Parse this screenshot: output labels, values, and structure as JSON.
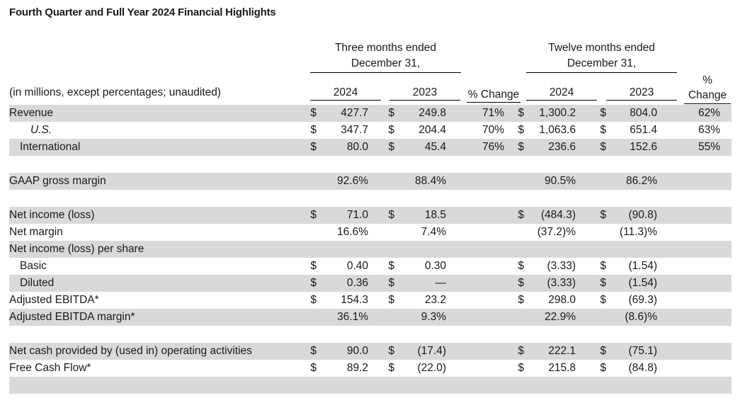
{
  "title": "Fourth Quarter and Full Year 2024 Financial Highlights",
  "headers": {
    "three_months": [
      "Three months ended",
      "December 31,"
    ],
    "twelve_months": [
      "Twelve months ended",
      "December 31,"
    ],
    "units_note": "(in millions, except percentages; unaudited)",
    "y2024": "2024",
    "y2023": "2023",
    "pct_change": "% Change",
    "pct_change_stacked": [
      "%",
      "Change"
    ]
  },
  "rows": [
    {
      "label": "Revenue",
      "style": "plain",
      "shade": true,
      "q24_d": "$",
      "q24": "427.7",
      "q23_d": "$",
      "q23": "249.8",
      "qchg": "71%",
      "y24_d": "$",
      "y24": "1,300.2",
      "y23_d": "$",
      "y23": "804.0",
      "ychg": "62%"
    },
    {
      "label": "U.S.",
      "style": "italic",
      "shade": false,
      "q24_d": "$",
      "q24": "347.7",
      "q23_d": "$",
      "q23": "204.4",
      "qchg": "70%",
      "y24_d": "$",
      "y24": "1,063.6",
      "y23_d": "$",
      "y23": "651.4",
      "ychg": "63%"
    },
    {
      "label": "International",
      "style": "indent",
      "shade": true,
      "q24_d": "$",
      "q24": "80.0",
      "q23_d": "$",
      "q23": "45.4",
      "qchg": "76%",
      "y24_d": "$",
      "y24": "236.6",
      "y23_d": "$",
      "y23": "152.6",
      "ychg": "55%"
    },
    {
      "label": "",
      "style": "plain",
      "shade": false,
      "q24_d": "",
      "q24": "",
      "q23_d": "",
      "q23": "",
      "qchg": "",
      "y24_d": "",
      "y24": "",
      "y23_d": "",
      "y23": "",
      "ychg": ""
    },
    {
      "label": "GAAP gross margin",
      "style": "plain",
      "shade": true,
      "q24_d": "",
      "q24": "92.6%",
      "q23_d": "",
      "q23": "88.4%",
      "qchg": "",
      "y24_d": "",
      "y24": "90.5%",
      "y23_d": "",
      "y23": "86.2%",
      "ychg": ""
    },
    {
      "label": "",
      "style": "plain",
      "shade": false,
      "q24_d": "",
      "q24": "",
      "q23_d": "",
      "q23": "",
      "qchg": "",
      "y24_d": "",
      "y24": "",
      "y23_d": "",
      "y23": "",
      "ychg": ""
    },
    {
      "label": "Net income (loss)",
      "style": "plain",
      "shade": true,
      "q24_d": "$",
      "q24": "71.0",
      "q23_d": "$",
      "q23": "18.5",
      "qchg": "",
      "y24_d": "$",
      "y24": "(484.3)",
      "y23_d": "$",
      "y23": "(90.8)",
      "ychg": ""
    },
    {
      "label": "Net margin",
      "style": "plain",
      "shade": false,
      "q24_d": "",
      "q24": "16.6%",
      "q23_d": "",
      "q23": "7.4%",
      "qchg": "",
      "y24_d": "",
      "y24": "(37.2)%",
      "y23_d": "",
      "y23": "(11.3)%",
      "ychg": ""
    },
    {
      "label": "Net income (loss) per share",
      "style": "plain",
      "shade": true,
      "q24_d": "",
      "q24": "",
      "q23_d": "",
      "q23": "",
      "qchg": "",
      "y24_d": "",
      "y24": "",
      "y23_d": "",
      "y23": "",
      "ychg": ""
    },
    {
      "label": "Basic",
      "style": "indent",
      "shade": false,
      "q24_d": "$",
      "q24": "0.40",
      "q23_d": "$",
      "q23": "0.30",
      "qchg": "",
      "y24_d": "$",
      "y24": "(3.33)",
      "y23_d": "$",
      "y23": "(1.54)",
      "ychg": ""
    },
    {
      "label": "Diluted",
      "style": "indent",
      "shade": true,
      "q24_d": "$",
      "q24": "0.36",
      "q23_d": "$",
      "q23": "—",
      "qchg": "",
      "y24_d": "$",
      "y24": "(3.33)",
      "y23_d": "$",
      "y23": "(1.54)",
      "ychg": ""
    },
    {
      "label": "Adjusted EBITDA*",
      "style": "plain",
      "shade": false,
      "q24_d": "$",
      "q24": "154.3",
      "q23_d": "$",
      "q23": "23.2",
      "qchg": "",
      "y24_d": "$",
      "y24": "298.0",
      "y23_d": "$",
      "y23": "(69.3)",
      "ychg": ""
    },
    {
      "label": "Adjusted EBITDA margin*",
      "style": "plain",
      "shade": true,
      "q24_d": "",
      "q24": "36.1%",
      "q23_d": "",
      "q23": "9.3%",
      "qchg": "",
      "y24_d": "",
      "y24": "22.9%",
      "y23_d": "",
      "y23": "(8.6)%",
      "ychg": ""
    },
    {
      "label": "",
      "style": "plain",
      "shade": false,
      "q24_d": "",
      "q24": "",
      "q23_d": "",
      "q23": "",
      "qchg": "",
      "y24_d": "",
      "y24": "",
      "y23_d": "",
      "y23": "",
      "ychg": ""
    },
    {
      "label": "Net cash provided by (used in) operating activities",
      "style": "plain",
      "shade": true,
      "q24_d": "$",
      "q24": "90.0",
      "q23_d": "$",
      "q23": "(17.4)",
      "qchg": "",
      "y24_d": "$",
      "y24": "222.1",
      "y23_d": "$",
      "y23": "(75.1)",
      "ychg": ""
    },
    {
      "label": "Free Cash Flow*",
      "style": "plain",
      "shade": false,
      "q24_d": "$",
      "q24": "89.2",
      "q23_d": "$",
      "q23": "(22.0)",
      "qchg": "",
      "y24_d": "$",
      "y24": "215.8",
      "y23_d": "$",
      "y23": "(84.8)",
      "ychg": ""
    },
    {
      "label": "",
      "style": "plain",
      "shade": true,
      "q24_d": "",
      "q24": "",
      "q23_d": "",
      "q23": "",
      "qchg": "",
      "y24_d": "",
      "y24": "",
      "y23_d": "",
      "y23": "",
      "ychg": ""
    }
  ]
}
